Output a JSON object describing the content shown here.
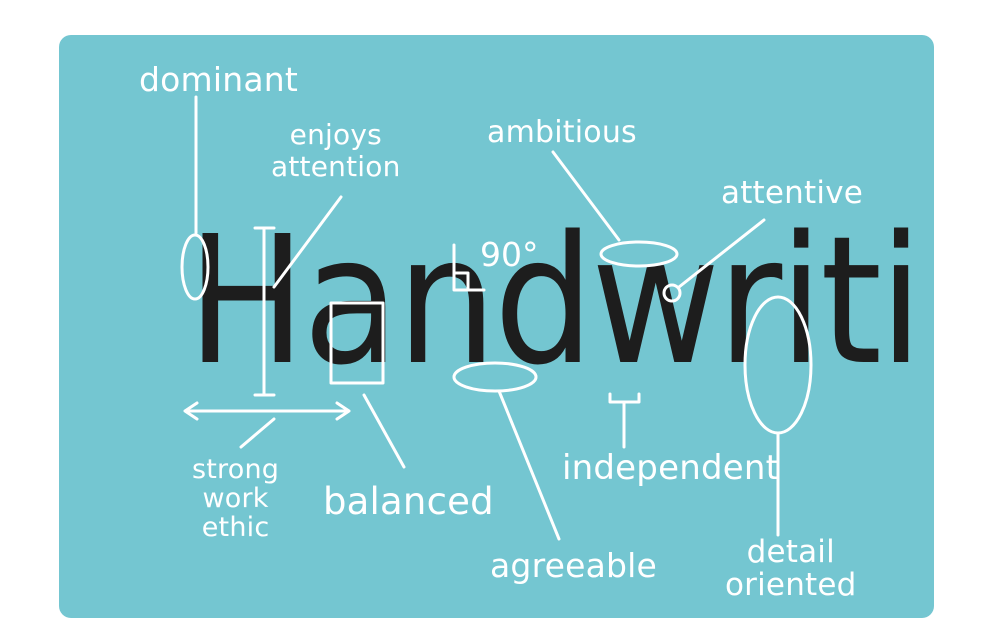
{
  "word": "Handwriting",
  "angle": "90°",
  "labels": {
    "dominant": "dominant",
    "enjoys": "enjoys",
    "attention": "attention",
    "ambitious": "ambitious",
    "attentive": "attentive",
    "strong": "strong",
    "work": "work",
    "ethic": "ethic",
    "balanced": "balanced",
    "agreeable": "agreeable",
    "independent": "independent",
    "detail": "detail",
    "oriented": "oriented"
  },
  "colors": {
    "background": "#74c6d1",
    "annotation": "#ffffff",
    "ink": "#1d1d1d"
  }
}
